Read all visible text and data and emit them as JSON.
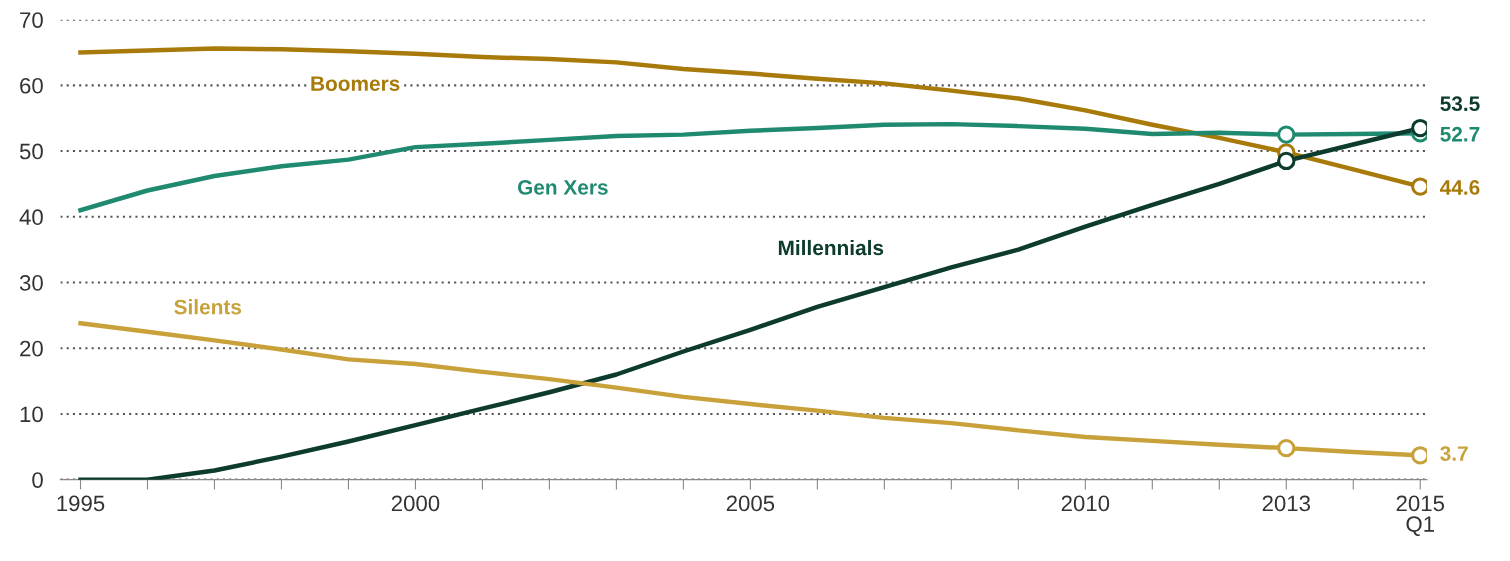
{
  "chart_data": {
    "type": "line",
    "x": [
      1995,
      1996,
      1997,
      1998,
      1999,
      2000,
      2001,
      2002,
      2003,
      2004,
      2005,
      2006,
      2007,
      2008,
      2009,
      2010,
      2011,
      2012,
      2013,
      2014,
      2015
    ],
    "series": [
      {
        "name": "Boomers",
        "color": "#a87a0a",
        "values": [
          65,
          65.3,
          65.6,
          65.5,
          65.2,
          64.8,
          64.3,
          64,
          63.5,
          62.5,
          61.8,
          61,
          60.3,
          59.2,
          58,
          56.2,
          54,
          52,
          49.8,
          47.2,
          44.6
        ],
        "value_labels": [
          null,
          null,
          null,
          null,
          null,
          null,
          null,
          null,
          null,
          null,
          null,
          null,
          null,
          null,
          null,
          null,
          null,
          null,
          null,
          null,
          "44.6"
        ]
      },
      {
        "name": "Gen Xers",
        "color": "#1f8a70",
        "values": [
          41,
          44,
          46.2,
          47.7,
          48.7,
          50.6,
          51.1,
          51.7,
          52.3,
          52.5,
          53.1,
          53.5,
          54,
          54.1,
          53.8,
          53.4,
          52.6,
          52.8,
          52.5,
          52.6,
          52.7
        ],
        "value_labels": [
          null,
          null,
          null,
          null,
          null,
          null,
          null,
          null,
          null,
          null,
          null,
          null,
          null,
          null,
          null,
          null,
          null,
          null,
          null,
          null,
          "52.7"
        ]
      },
      {
        "name": "Millennials",
        "color": "#0d3b2e",
        "values": [
          0,
          0,
          1.4,
          3.5,
          5.8,
          8.3,
          10.8,
          13.3,
          16,
          19.5,
          22.8,
          26.3,
          29.3,
          32.3,
          35,
          38.5,
          41.8,
          45,
          48.5,
          51,
          53.5
        ],
        "value_labels": [
          null,
          null,
          null,
          null,
          null,
          null,
          null,
          null,
          null,
          null,
          null,
          null,
          null,
          null,
          null,
          null,
          null,
          null,
          null,
          null,
          "53.5"
        ]
      },
      {
        "name": "Silents",
        "color": "#c9a13a",
        "values": [
          23.8,
          22.5,
          21.2,
          19.8,
          18.3,
          17.6,
          16.4,
          15.3,
          14,
          12.6,
          11.5,
          10.5,
          9.4,
          8.6,
          7.5,
          6.5,
          5.9,
          5.3,
          4.8,
          4.2,
          3.7
        ],
        "value_labels": [
          null,
          null,
          null,
          null,
          null,
          null,
          null,
          null,
          null,
          null,
          null,
          null,
          null,
          null,
          null,
          null,
          null,
          null,
          null,
          null,
          "3.7"
        ]
      },
      {
        "type": "scatter",
        "marker": "circle",
        "color": "#a87a0a",
        "values": [
          null,
          null,
          null,
          null,
          null,
          null,
          null,
          null,
          null,
          null,
          null,
          null,
          null,
          null,
          null,
          null,
          null,
          null,
          49.8,
          null,
          44.6
        ]
      },
      {
        "type": "scatter",
        "marker": "circle",
        "color": "#1f8a70",
        "values": [
          null,
          null,
          null,
          null,
          null,
          null,
          null,
          null,
          null,
          null,
          null,
          null,
          null,
          null,
          null,
          null,
          null,
          null,
          52.5,
          null,
          52.7
        ]
      },
      {
        "type": "scatter",
        "marker": "circle",
        "color": "#0d3b2e",
        "values": [
          null,
          null,
          null,
          null,
          null,
          null,
          null,
          null,
          null,
          null,
          null,
          null,
          null,
          null,
          null,
          null,
          null,
          null,
          48.5,
          null,
          53.5
        ]
      },
      {
        "type": "scatter",
        "marker": "circle",
        "color": "#c9a13a",
        "values": [
          null,
          null,
          null,
          null,
          null,
          null,
          null,
          null,
          null,
          null,
          null,
          null,
          null,
          null,
          null,
          null,
          null,
          null,
          4.8,
          null,
          3.7
        ]
      }
    ],
    "xlim": [
      1994.7,
      2015.1
    ],
    "xticks": [
      1995,
      {
        "value": 1996,
        "label": null
      },
      {
        "value": 1997,
        "label": null
      },
      {
        "value": 1998,
        "label": null
      },
      {
        "value": 1999,
        "label": null
      },
      2000,
      {
        "value": 2001,
        "label": null
      },
      {
        "value": 2002,
        "label": null
      },
      {
        "value": 2003,
        "label": null
      },
      {
        "value": 2004,
        "label": null
      },
      2005,
      {
        "value": 2006,
        "label": null
      },
      {
        "value": 2007,
        "label": null
      },
      {
        "value": 2008,
        "label": null
      },
      {
        "value": 2009,
        "label": null
      },
      2010,
      {
        "value": 2011,
        "label": null
      },
      {
        "value": 2012,
        "label": null
      },
      2013,
      {
        "value": 2014,
        "label": null
      },
      {
        "value": 2015,
        "label": "2015\nQ1"
      }
    ],
    "ylim": [
      0,
      70
    ],
    "yticks": [
      0,
      10,
      20,
      30,
      40,
      50,
      60,
      70
    ],
    "grid": "y",
    "legend": false,
    "line_style": "solid"
  }
}
